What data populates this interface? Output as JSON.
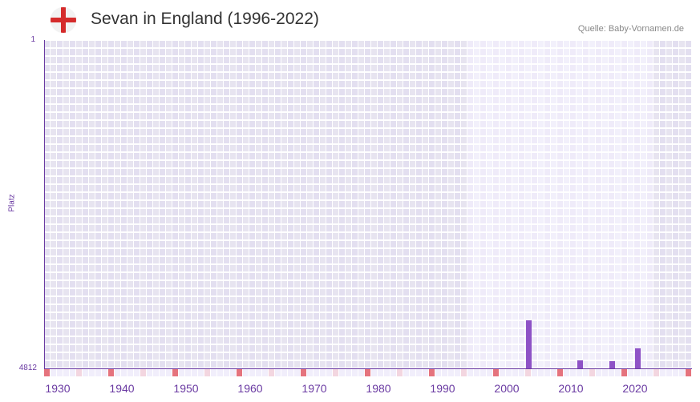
{
  "header": {
    "title": "Sevan in England (1996-2022)",
    "flag_icon": "england-flag-icon",
    "source": "Quelle: Baby-Vornamen.de"
  },
  "colors": {
    "bar": "#8e52c6",
    "axis": "#6a3aa2",
    "bg_outside": "#e3dff0",
    "bg_outside_alt": "#e7e4f0",
    "bg_range": "#efebf9",
    "bg_range_alt": "#f2f0fb",
    "marker_decade": "#e5737d",
    "marker_half": "#f3d6e0",
    "marker_default": "#f1eefb"
  },
  "chart_data": {
    "type": "bar",
    "title": "Sevan in England (1996-2022)",
    "xlabel": "",
    "ylabel": "Platz",
    "y_inverted": true,
    "ylim": [
      1,
      4812
    ],
    "xlim": [
      1928,
      2028
    ],
    "x_ticks": [
      "1930",
      "1940",
      "1950",
      "1960",
      "1970",
      "1980",
      "1990",
      "2000",
      "2010",
      "2020"
    ],
    "y_ticks": [
      "1",
      "4812"
    ],
    "highlight_range": [
      1994,
      2022
    ],
    "grid": true,
    "legend": null,
    "categories": [
      "2003",
      "2011",
      "2016",
      "2020"
    ],
    "values": [
      4108,
      4695,
      4706,
      4519
    ]
  },
  "axes": {
    "y_top": "1",
    "y_bottom": "4812",
    "y_title": "Platz",
    "x_labels": [
      "1930",
      "1940",
      "1950",
      "1960",
      "1970",
      "1980",
      "1990",
      "2000",
      "2010",
      "2020"
    ]
  }
}
